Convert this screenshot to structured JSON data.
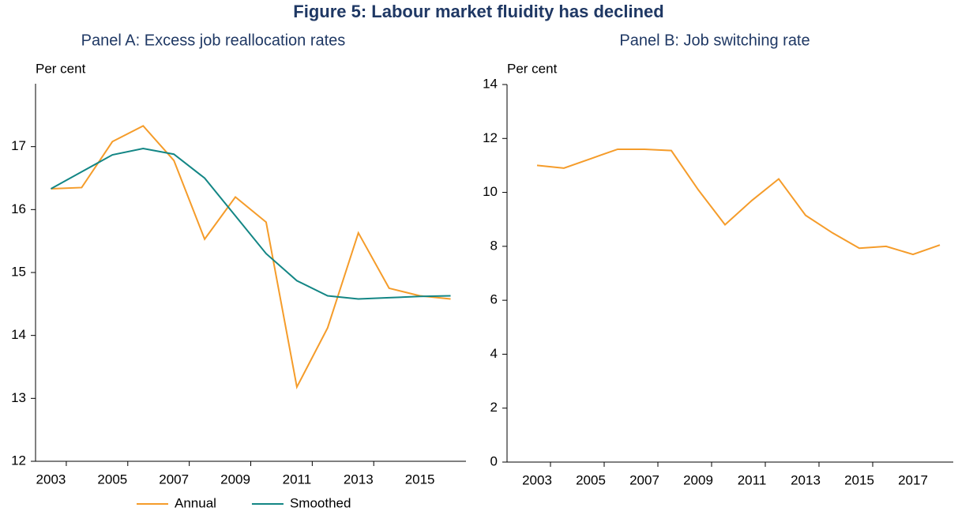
{
  "title": "Figure 5: Labour market fluidity has declined",
  "chart_data": [
    {
      "type": "line",
      "title": "Panel A: Excess job reallocation rates",
      "y_label": "Per cent",
      "categories": [
        "2003",
        null,
        "2005",
        null,
        "2007",
        null,
        "2009",
        null,
        "2011",
        null,
        "2013",
        null,
        "2015",
        null
      ],
      "series": [
        {
          "name": "Annual",
          "color": "#f59c2a",
          "values": [
            16.33,
            16.35,
            17.08,
            17.33,
            16.78,
            15.53,
            16.2,
            15.8,
            13.18,
            14.12,
            15.63,
            14.75,
            14.63,
            14.58
          ]
        },
        {
          "name": "Smoothed",
          "color": "#138685",
          "values": [
            16.33,
            16.6,
            16.87,
            16.97,
            16.88,
            16.5,
            15.9,
            15.3,
            14.87,
            14.63,
            14.58,
            14.6,
            14.62,
            14.63
          ]
        }
      ],
      "ylim": [
        12,
        18
      ],
      "yticks": [
        12,
        13,
        14,
        15,
        16,
        17
      ],
      "legend": "bottom"
    },
    {
      "type": "line",
      "title": "Panel B: Job switching rate",
      "y_label": "Per cent",
      "categories": [
        "2003",
        null,
        "2005",
        null,
        "2007",
        null,
        "2009",
        null,
        "2011",
        null,
        "2013",
        null,
        "2015",
        null,
        "2017",
        null
      ],
      "series": [
        {
          "name": "Job switching rate",
          "color": "#f59c2a",
          "values": [
            11.0,
            10.9,
            11.25,
            11.6,
            11.6,
            11.55,
            10.1,
            8.8,
            9.7,
            10.5,
            9.15,
            8.5,
            7.93,
            8.0,
            7.7,
            8.05
          ]
        }
      ],
      "ylim": [
        0,
        14
      ],
      "yticks": [
        0,
        2,
        4,
        6,
        8,
        10,
        12,
        14
      ],
      "legend": "none"
    }
  ]
}
